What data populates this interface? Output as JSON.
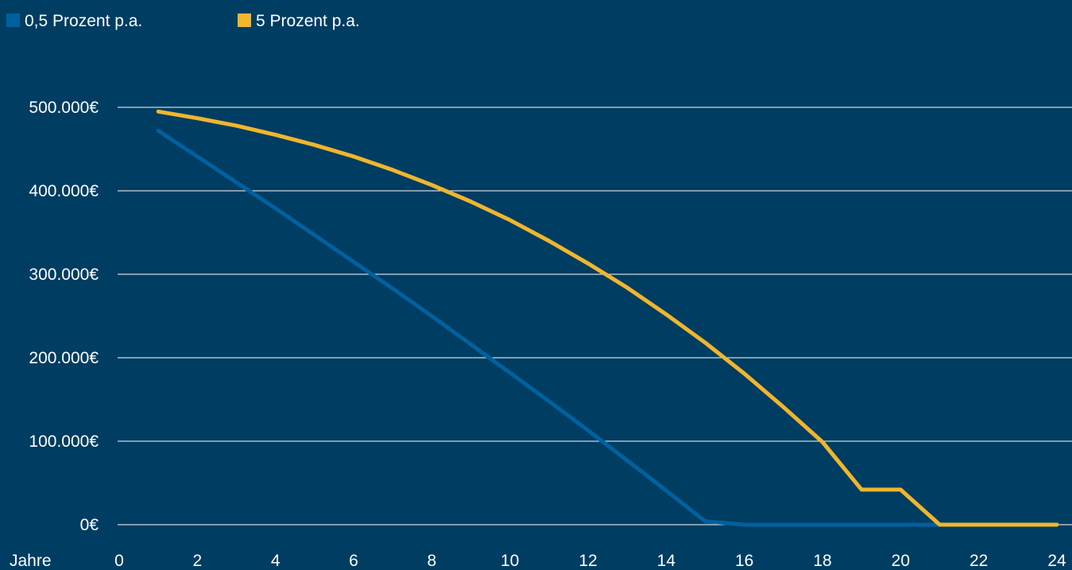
{
  "chart_data": {
    "type": "line",
    "x_unit_label": "Jahre",
    "x": [
      1,
      2,
      3,
      4,
      5,
      6,
      7,
      8,
      9,
      10,
      11,
      12,
      13,
      14,
      15,
      16,
      17,
      18,
      19,
      20,
      21,
      22,
      23,
      24
    ],
    "x_ticks": [
      0,
      2,
      4,
      6,
      8,
      10,
      12,
      14,
      16,
      18,
      20,
      22,
      24
    ],
    "xlim": [
      0,
      24
    ],
    "y_ticks": [
      0,
      100000,
      200000,
      300000,
      400000,
      500000
    ],
    "y_tick_labels": [
      "0€",
      "100.000€",
      "200.000€",
      "300.000€",
      "400.000€",
      "500.000€"
    ],
    "ylim": [
      0,
      500000
    ],
    "grid": true,
    "legend_position": "top-left",
    "series": [
      {
        "name": "0,5 Prozent p.a.",
        "color": "#0061a0",
        "values": [
          472000,
          441000,
          410000,
          379000,
          347000,
          315000,
          283000,
          250000,
          216000,
          182000,
          148000,
          113000,
          77000,
          41000,
          4000,
          0,
          0,
          0,
          0,
          0,
          0,
          0,
          0,
          0
        ]
      },
      {
        "name": "5 Prozent p.a.",
        "color": "#f0b62d",
        "values": [
          495000,
          487000,
          478000,
          467000,
          455000,
          441000,
          425000,
          407000,
          387000,
          365000,
          340000,
          313000,
          284000,
          252000,
          218000,
          181000,
          141000,
          99000,
          42000,
          42000,
          0,
          0,
          0,
          0
        ]
      }
    ]
  }
}
